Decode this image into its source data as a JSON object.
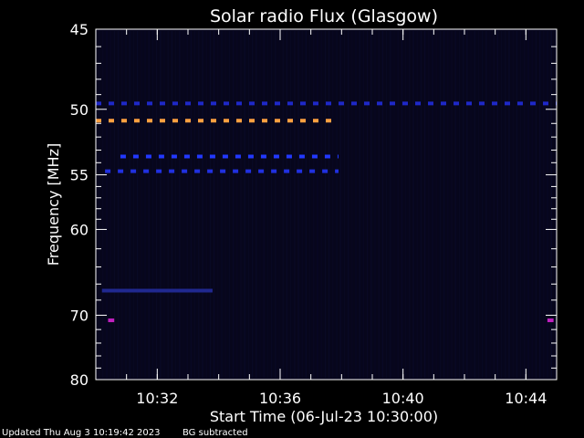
{
  "chart_data": {
    "type": "heatmap",
    "title": "Solar radio Flux (Glasgow)",
    "xlabel": "Start Time (06-Jul-23 10:30:00)",
    "ylabel": "Frequency [MHz]",
    "x_range_minutes": [
      0,
      15
    ],
    "x_tick_labels": [
      "10:32",
      "10:36",
      "10:40",
      "10:44"
    ],
    "x_tick_minutes": [
      2,
      6,
      10,
      14
    ],
    "y_range_mhz": [
      45,
      80
    ],
    "y_scale": "reciprocal",
    "y_tick_labels": [
      "45",
      "50",
      "55",
      "60",
      "70",
      "80"
    ],
    "y_tick_values": [
      45,
      50,
      55,
      60,
      70,
      80
    ],
    "background_color": "#07061c",
    "features": [
      {
        "name": "band",
        "mhz": 49.6,
        "minutes": [
          0,
          15
        ],
        "color": "#1e28c8",
        "style": "dashed"
      },
      {
        "name": "band",
        "mhz": 50.8,
        "minutes": [
          0,
          7.9
        ],
        "color": "#ffa040",
        "style": "dashed"
      },
      {
        "name": "band",
        "mhz": 53.5,
        "minutes": [
          0.8,
          7.9
        ],
        "color": "#2238ff",
        "style": "dashed"
      },
      {
        "name": "band",
        "mhz": 54.7,
        "minutes": [
          0.3,
          7.9
        ],
        "color": "#2030e0",
        "style": "dashed"
      },
      {
        "name": "band",
        "mhz": 66.8,
        "minutes": [
          0.2,
          3.8
        ],
        "color": "#202890",
        "style": "solid"
      },
      {
        "name": "spot",
        "mhz": 70.7,
        "minutes": [
          0.4,
          0.6
        ],
        "color": "#c020c0",
        "style": "solid"
      },
      {
        "name": "spot",
        "mhz": 70.7,
        "minutes": [
          14.7,
          14.9
        ],
        "color": "#c020c0",
        "style": "solid"
      }
    ]
  },
  "footer": {
    "updated": "Updated Thu Aug  3 10:19:42 2023",
    "bg": "BG subtracted"
  }
}
